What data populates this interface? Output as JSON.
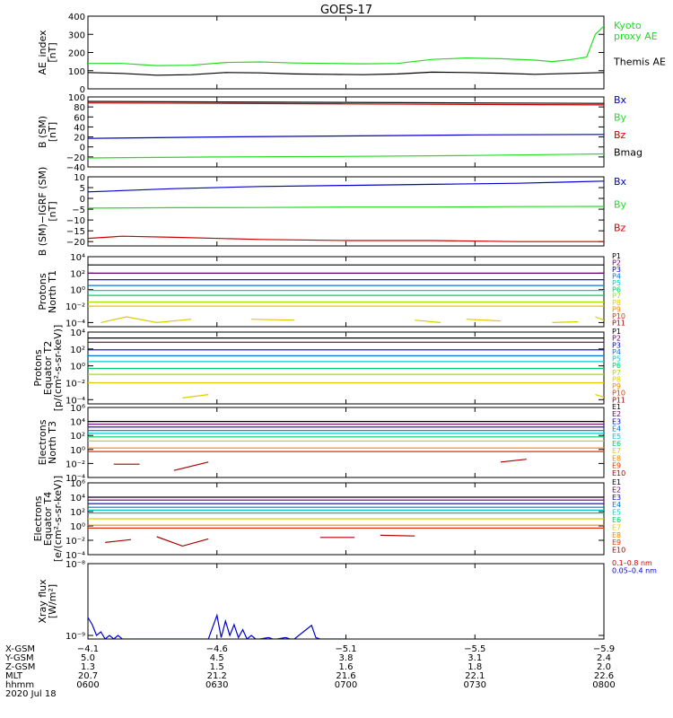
{
  "title": "GOES-17",
  "colors": {
    "black": "#000000",
    "red": "#cc0000",
    "green": "#22dd22",
    "blue": "#0000cc",
    "p1": "#000000",
    "p2": "#660066",
    "p3": "#0000cc",
    "p4": "#0077dd",
    "p5": "#00cccc",
    "p6": "#00cc66",
    "p7": "#aadd00",
    "p8": "#ddcc00",
    "p9": "#ee8800",
    "p10": "#dd3300",
    "p11": "#aa0000"
  },
  "chart_data": [
    {
      "type": "line",
      "ylabel": "AE_index\n[nT]",
      "ylim": [
        0,
        400
      ],
      "yticks": [
        0,
        100,
        200,
        300,
        400
      ],
      "yticklabels": [
        "0",
        "100",
        "200",
        "300",
        "400"
      ],
      "series": [
        {
          "name": "Kyoto\nproxy AE",
          "color": "green",
          "x": [
            0,
            4,
            8,
            12,
            16,
            20,
            24,
            28,
            32,
            36,
            40,
            44,
            48,
            52,
            54,
            56,
            58,
            59,
            60
          ],
          "y": [
            140,
            140,
            128,
            130,
            145,
            148,
            142,
            140,
            138,
            140,
            162,
            170,
            166,
            158,
            150,
            160,
            175,
            300,
            345
          ]
        },
        {
          "name": "Themis AE",
          "color": "black",
          "x": [
            0,
            4,
            8,
            12,
            16,
            20,
            24,
            28,
            32,
            36,
            40,
            44,
            48,
            52,
            56,
            60
          ],
          "y": [
            90,
            85,
            75,
            78,
            90,
            88,
            82,
            80,
            78,
            82,
            92,
            90,
            86,
            80,
            85,
            90
          ]
        }
      ]
    },
    {
      "type": "line",
      "ylabel": "B (SM)\n[nT]",
      "ylim": [
        -40,
        100
      ],
      "yticks": [
        -40,
        -20,
        0,
        20,
        40,
        60,
        80,
        100
      ],
      "yticklabels": [
        "−40",
        "−20",
        "0",
        "20",
        "40",
        "60",
        "80",
        "100"
      ],
      "series": [
        {
          "name": "Bx",
          "color": "blue",
          "x": [
            0,
            15,
            30,
            45,
            60
          ],
          "y": [
            17,
            20,
            22,
            24,
            25
          ]
        },
        {
          "name": "By",
          "color": "green",
          "x": [
            0,
            15,
            30,
            45,
            60
          ],
          "y": [
            -22,
            -20,
            -19,
            -17,
            -14
          ]
        },
        {
          "name": "Bz",
          "color": "red",
          "x": [
            0,
            15,
            30,
            45,
            60
          ],
          "y": [
            88,
            87,
            86,
            85,
            84
          ]
        },
        {
          "name": "Bmag",
          "color": "black",
          "x": [
            0,
            15,
            30,
            45,
            60
          ],
          "y": [
            91,
            90,
            89,
            88,
            87
          ]
        }
      ]
    },
    {
      "type": "line",
      "ylabel": "B (SM)−IGRF (SM)\n[nT]",
      "ylim": [
        -22,
        10
      ],
      "yticks": [
        -20,
        -15,
        -10,
        -5,
        0,
        5,
        10
      ],
      "yticklabels": [
        "−20",
        "−15",
        "−10",
        "−5",
        "0",
        "5",
        "10"
      ],
      "series": [
        {
          "name": "Bx",
          "color": "blue",
          "x": [
            0,
            10,
            20,
            30,
            40,
            50,
            60
          ],
          "y": [
            3,
            4.5,
            5.5,
            6,
            6.5,
            7,
            8
          ]
        },
        {
          "name": "By",
          "color": "green",
          "x": [
            0,
            10,
            20,
            30,
            40,
            50,
            60
          ],
          "y": [
            -4.5,
            -4.3,
            -4.2,
            -4,
            -4,
            -3.8,
            -3.7
          ]
        },
        {
          "name": "Bz",
          "color": "red",
          "x": [
            0,
            4,
            10,
            20,
            30,
            40,
            50,
            60
          ],
          "y": [
            -18.5,
            -17.5,
            -18,
            -19,
            -19.5,
            -19.5,
            -20,
            -20
          ]
        }
      ]
    },
    {
      "type": "line",
      "log": true,
      "ylabel": "Protons\nNorth T1",
      "ylim_exp": [
        -4.5,
        4
      ],
      "yticks_exp": [
        -4,
        -2,
        0,
        2,
        4
      ],
      "yticklabels": [
        "10⁻⁴",
        "10⁻²",
        "10⁰",
        "10²",
        "10⁴"
      ],
      "series": [
        {
          "name": "P1",
          "color": "p1",
          "levels": [
            3.0
          ]
        },
        {
          "name": "P2",
          "color": "p2",
          "levels": [
            2.0
          ]
        },
        {
          "name": "P3",
          "color": "p3",
          "levels": [
            1.2
          ]
        },
        {
          "name": "P4",
          "color": "p4",
          "levels": [
            0.5
          ]
        },
        {
          "name": "P5",
          "color": "p5",
          "levels": [
            -0.1
          ]
        },
        {
          "name": "P6",
          "color": "p6",
          "levels": [
            -0.7
          ]
        },
        {
          "name": "P7",
          "color": "p7",
          "levels": [
            -1.5
          ]
        },
        {
          "name": "P8",
          "color": "p8",
          "levels": [
            -2.0
          ]
        },
        {
          "name": "P9",
          "color": "p9",
          "levels": []
        },
        {
          "name": "P10",
          "color": "p10",
          "levels": []
        },
        {
          "name": "P11",
          "color": "p11",
          "levels": []
        }
      ],
      "fragments": [
        {
          "color": "p8",
          "x": [
            1.5,
            4.5,
            8
          ],
          "y": [
            -4.0,
            -3.3,
            -4.0
          ]
        },
        {
          "color": "p8",
          "x": [
            8,
            12
          ],
          "y": [
            -4.0,
            -3.6
          ]
        },
        {
          "color": "p8",
          "x": [
            19,
            24
          ],
          "y": [
            -3.6,
            -3.7
          ]
        },
        {
          "color": "p8",
          "x": [
            38,
            41
          ],
          "y": [
            -3.7,
            -4.0
          ]
        },
        {
          "color": "p8",
          "x": [
            44,
            48
          ],
          "y": [
            -3.6,
            -3.8
          ]
        },
        {
          "color": "p8",
          "x": [
            54,
            57
          ],
          "y": [
            -4.0,
            -3.9
          ]
        },
        {
          "color": "p8",
          "x": [
            59,
            60
          ],
          "y": [
            -3.3,
            -3.7
          ]
        }
      ]
    },
    {
      "type": "line",
      "log": true,
      "ylabel": "Protons\nEquator T2\n[p/(cm²-s-sr-keV)]",
      "ylim_exp": [
        -4.5,
        4
      ],
      "yticks_exp": [
        -4,
        -2,
        0,
        2,
        4
      ],
      "yticklabels": [
        "10⁻⁴",
        "10⁻²",
        "10⁰",
        "10²",
        "10⁴"
      ],
      "series": [
        {
          "name": "P1",
          "color": "p1",
          "levels": [
            3.3
          ]
        },
        {
          "name": "P2",
          "color": "p2",
          "levels": [
            2.8
          ]
        },
        {
          "name": "P3",
          "color": "p3",
          "levels": [
            1.9
          ]
        },
        {
          "name": "P4",
          "color": "p4",
          "levels": [
            1.2
          ]
        },
        {
          "name": "P5",
          "color": "p5",
          "levels": [
            0.5
          ]
        },
        {
          "name": "P6",
          "color": "p6",
          "levels": [
            -0.3
          ]
        },
        {
          "name": "P7",
          "color": "p7",
          "levels": [
            -1.0
          ]
        },
        {
          "name": "P8",
          "color": "p8",
          "levels": [
            -2.0
          ]
        },
        {
          "name": "P9",
          "color": "p9",
          "levels": []
        },
        {
          "name": "P10",
          "color": "p10",
          "levels": []
        },
        {
          "name": "P11",
          "color": "p11",
          "levels": []
        }
      ],
      "fragments": [
        {
          "color": "p8",
          "x": [
            11,
            14
          ],
          "y": [
            -3.8,
            -3.4
          ]
        },
        {
          "color": "p8",
          "x": [
            59,
            60
          ],
          "y": [
            -3.4,
            -3.7
          ]
        }
      ]
    },
    {
      "type": "line",
      "log": true,
      "ylabel": "Electrons\nNorth T3",
      "ylim_exp": [
        -4,
        6
      ],
      "yticks_exp": [
        -4,
        -2,
        0,
        2,
        4,
        6
      ],
      "yticklabels": [
        "10⁻⁴",
        "10⁻²",
        "10⁰",
        "10²",
        "10⁴",
        "10⁶"
      ],
      "series": [
        {
          "name": "E1",
          "color": "p1",
          "levels": [
            4.0
          ]
        },
        {
          "name": "E2",
          "color": "p2",
          "levels": [
            3.6
          ]
        },
        {
          "name": "E3",
          "color": "p3",
          "levels": [
            3.2
          ]
        },
        {
          "name": "E4",
          "color": "p4",
          "levels": [
            2.7
          ]
        },
        {
          "name": "E5",
          "color": "p5",
          "levels": [
            2.3
          ]
        },
        {
          "name": "E6",
          "color": "p6",
          "levels": [
            1.8
          ]
        },
        {
          "name": "E7",
          "color": "p8",
          "levels": [
            1.2
          ]
        },
        {
          "name": "E8",
          "color": "p9",
          "levels": [
            0.2
          ]
        },
        {
          "name": "E9",
          "color": "p10",
          "levels": [
            -0.3
          ]
        },
        {
          "name": "E10",
          "color": "p11",
          "levels": []
        }
      ],
      "fragments": [
        {
          "color": "p11",
          "x": [
            3,
            6
          ],
          "y": [
            -2.1,
            -2.1
          ]
        },
        {
          "color": "p11",
          "x": [
            10,
            14
          ],
          "y": [
            -3.0,
            -1.8
          ]
        },
        {
          "color": "p11",
          "x": [
            48,
            51
          ],
          "y": [
            -1.8,
            -1.4
          ]
        }
      ]
    },
    {
      "type": "line",
      "log": true,
      "ylabel": "Electrons\nEquator T4\n[e/(cm²-s-sr-keV)]",
      "ylim_exp": [
        -4,
        6
      ],
      "yticks_exp": [
        -4,
        -2,
        0,
        2,
        4,
        6
      ],
      "yticklabels": [
        "10⁻⁴",
        "10⁻²",
        "10⁰",
        "10²",
        "10⁴",
        "10⁶"
      ],
      "series": [
        {
          "name": "E1",
          "color": "p1",
          "levels": [
            4.0
          ]
        },
        {
          "name": "E2",
          "color": "p2",
          "levels": [
            3.6
          ]
        },
        {
          "name": "E3",
          "color": "p3",
          "levels": [
            3.1
          ]
        },
        {
          "name": "E4",
          "color": "p4",
          "levels": [
            2.6
          ]
        },
        {
          "name": "E5",
          "color": "p5",
          "levels": [
            2.2
          ]
        },
        {
          "name": "E6",
          "color": "p6",
          "levels": [
            1.8
          ]
        },
        {
          "name": "E7",
          "color": "p8",
          "levels": [
            1.0
          ]
        },
        {
          "name": "E8",
          "color": "p9",
          "levels": [
            0.1
          ]
        },
        {
          "name": "E9",
          "color": "p10",
          "levels": [
            -0.3
          ]
        },
        {
          "name": "E10",
          "color": "p11",
          "levels": []
        }
      ],
      "fragments": [
        {
          "color": "p11",
          "x": [
            2,
            5
          ],
          "y": [
            -2.3,
            -1.9
          ]
        },
        {
          "color": "p11",
          "x": [
            8,
            11,
            14
          ],
          "y": [
            -1.5,
            -2.8,
            -1.8
          ]
        },
        {
          "color": "p11",
          "x": [
            27,
            31
          ],
          "y": [
            -1.6,
            -1.6
          ]
        },
        {
          "color": "p11",
          "x": [
            34,
            38
          ],
          "y": [
            -1.3,
            -1.4
          ]
        }
      ]
    },
    {
      "type": "line",
      "log": true,
      "ylabel": "Xray flux\n[W/m²]",
      "ylim_exp": [
        -9.05,
        -8
      ],
      "yticks_exp": [
        -9,
        -8
      ],
      "yticklabels": [
        "10⁻⁹",
        "10⁻⁸"
      ],
      "series": [
        {
          "name": "0.1–0.8 nm",
          "color": "red",
          "x": [],
          "y": []
        },
        {
          "name": "0.05–0.4 nm",
          "color": "blue",
          "x": [
            0,
            0.5,
            1,
            1.5,
            2,
            2.5,
            3,
            3.5,
            4,
            14,
            15,
            15.5,
            16,
            16.5,
            17,
            17.5,
            18,
            18.5,
            19,
            19.5,
            20,
            21,
            21.5,
            22,
            23,
            23.5,
            24,
            26,
            26.5,
            27,
            30
          ],
          "y": [
            -8.75,
            -8.85,
            -9.0,
            -8.95,
            -9.05,
            -9.0,
            -9.05,
            -9.0,
            -9.05,
            -9.05,
            -8.72,
            -9.03,
            -8.8,
            -9.0,
            -8.85,
            -9.03,
            -8.92,
            -9.05,
            -9.0,
            -9.05,
            -9.05,
            -9.03,
            -9.05,
            -9.05,
            -9.03,
            -9.05,
            -9.05,
            -8.86,
            -9.03,
            -9.05,
            -9.05
          ]
        }
      ]
    }
  ],
  "xaxis": {
    "xlim": [
      0,
      60
    ],
    "ticks": [
      0,
      15,
      30,
      45,
      60
    ],
    "rows": [
      {
        "label": "X-GSM",
        "values": [
          "−4.1",
          "−4.6",
          "−5.1",
          "−5.5",
          "−5.9"
        ]
      },
      {
        "label": "Y-GSM",
        "values": [
          "5.0",
          "4.5",
          "3.8",
          "3.1",
          "2.4"
        ]
      },
      {
        "label": "Z-GSM",
        "values": [
          "1.3",
          "1.5",
          "1.6",
          "1.8",
          "2.0"
        ]
      },
      {
        "label": "MLT",
        "values": [
          "20.7",
          "21.2",
          "21.6",
          "22.1",
          "22.6"
        ]
      },
      {
        "label": "hhmm",
        "values": [
          "0600",
          "0630",
          "0700",
          "0730",
          "0800"
        ]
      }
    ],
    "date": "2020 Jul 18"
  }
}
